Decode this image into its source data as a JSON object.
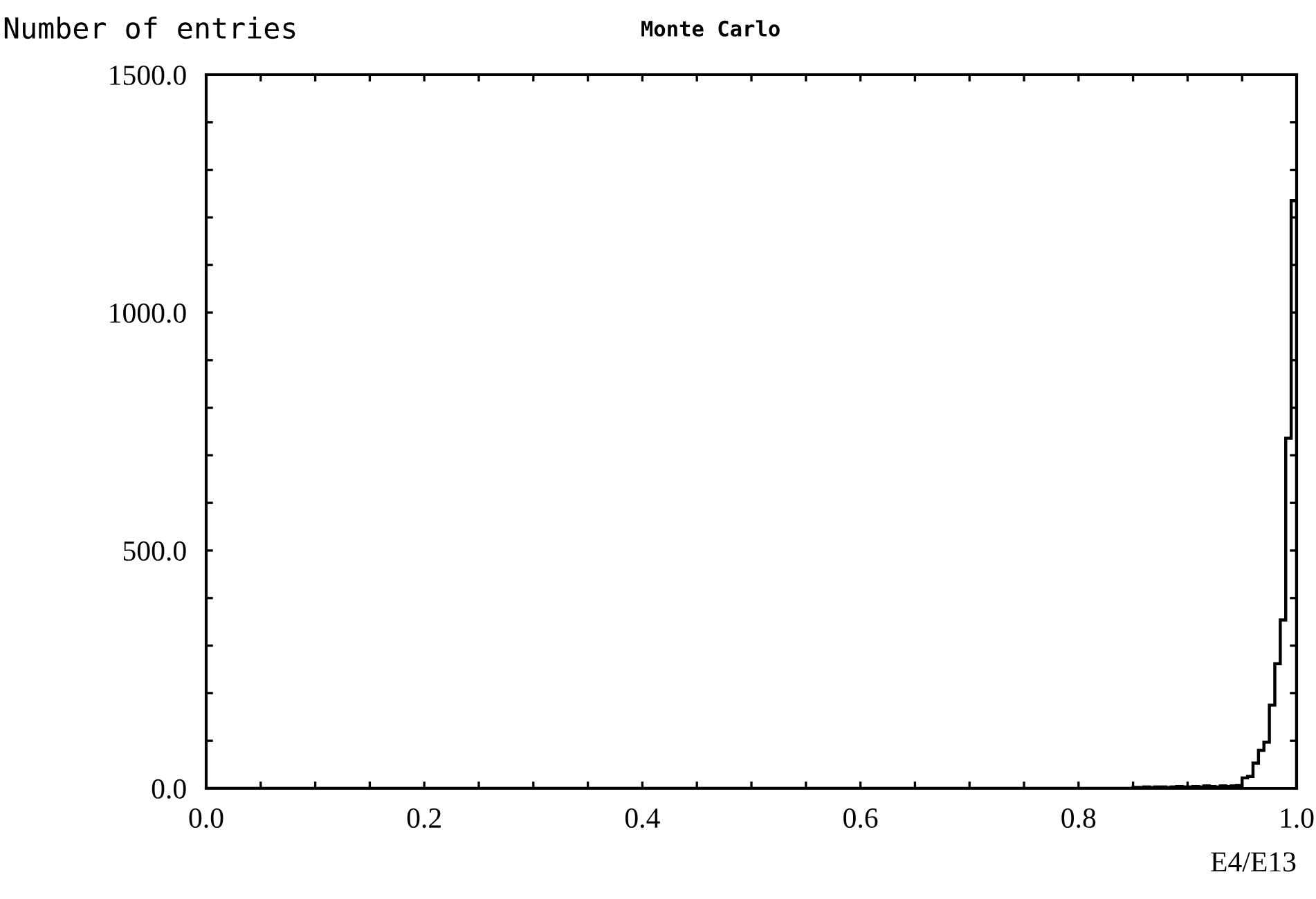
{
  "chart_data": {
    "type": "histogram",
    "title": "Monte Carlo",
    "ylabel": "Number of entries",
    "xlabel": "E4/E13",
    "bins": [
      0.0,
      0.85,
      0.855,
      0.86,
      0.865,
      0.87,
      0.875,
      0.88,
      0.885,
      0.89,
      0.895,
      0.9,
      0.905,
      0.91,
      0.915,
      0.92,
      0.925,
      0.93,
      0.935,
      0.94,
      0.945,
      0.95,
      0.955,
      0.96,
      0.965,
      0.97,
      0.975,
      0.98,
      0.985,
      0.99,
      0.995,
      1.0
    ],
    "values": [
      0,
      2,
      2,
      3,
      2,
      3,
      3,
      2,
      3,
      4,
      3,
      3,
      4,
      3,
      5,
      4,
      3,
      5,
      4,
      5,
      6,
      22,
      25,
      53,
      80,
      97,
      175,
      262,
      354,
      736,
      1235
    ],
    "color": "#000000",
    "xlim": [
      0.0,
      1.0
    ],
    "ylim": [
      0.0,
      1500.0
    ],
    "xticks": [
      {
        "value": 0.0,
        "label": "0.0"
      },
      {
        "value": 0.05,
        "label": null
      },
      {
        "value": 0.1,
        "label": null
      },
      {
        "value": 0.15,
        "label": null
      },
      {
        "value": 0.2,
        "label": "0.2"
      },
      {
        "value": 0.25,
        "label": null
      },
      {
        "value": 0.3,
        "label": null
      },
      {
        "value": 0.35,
        "label": null
      },
      {
        "value": 0.4,
        "label": "0.4"
      },
      {
        "value": 0.45,
        "label": null
      },
      {
        "value": 0.5,
        "label": null
      },
      {
        "value": 0.55,
        "label": null
      },
      {
        "value": 0.6,
        "label": "0.6"
      },
      {
        "value": 0.65,
        "label": null
      },
      {
        "value": 0.7,
        "label": null
      },
      {
        "value": 0.75,
        "label": null
      },
      {
        "value": 0.8,
        "label": "0.8"
      },
      {
        "value": 0.85,
        "label": null
      },
      {
        "value": 0.9,
        "label": null
      },
      {
        "value": 0.95,
        "label": null
      },
      {
        "value": 1.0,
        "label": "1.0"
      }
    ],
    "yticks": [
      {
        "value": 0,
        "label": "0.0"
      },
      {
        "value": 100,
        "label": null
      },
      {
        "value": 200,
        "label": null
      },
      {
        "value": 300,
        "label": null
      },
      {
        "value": 400,
        "label": null
      },
      {
        "value": 500,
        "label": "500.0"
      },
      {
        "value": 600,
        "label": null
      },
      {
        "value": 700,
        "label": null
      },
      {
        "value": 800,
        "label": null
      },
      {
        "value": 900,
        "label": null
      },
      {
        "value": 1000,
        "label": "1000.0"
      },
      {
        "value": 1100,
        "label": null
      },
      {
        "value": 1200,
        "label": null
      },
      {
        "value": 1300,
        "label": null
      },
      {
        "value": 1400,
        "label": null
      },
      {
        "value": 1500,
        "label": "1500.0"
      }
    ],
    "grid": false
  }
}
